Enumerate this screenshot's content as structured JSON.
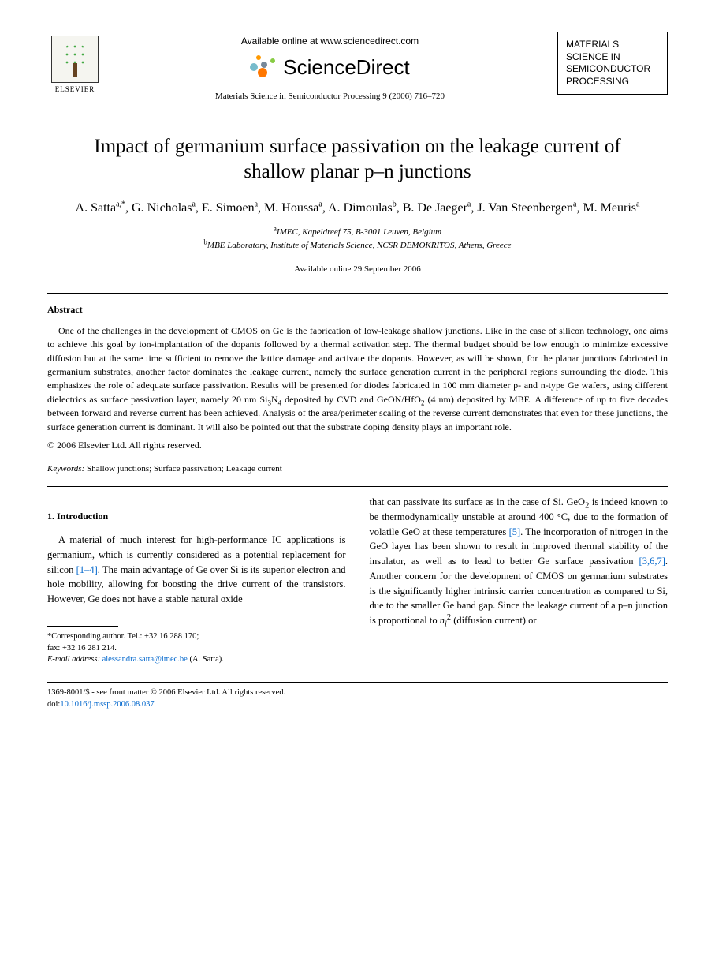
{
  "header": {
    "elsevier_label": "ELSEVIER",
    "available_online": "Available online at www.sciencedirect.com",
    "sciencedirect": "ScienceDirect",
    "journal_ref": "Materials Science in Semiconductor Processing 9 (2006) 716–720",
    "journal_box_line1": "MATERIALS",
    "journal_box_line2": "SCIENCE IN",
    "journal_box_line3": "SEMICONDUCTOR",
    "journal_box_line4": "PROCESSING"
  },
  "title": "Impact of germanium surface passivation on the leakage current of shallow planar p–n junctions",
  "authors_html": "A. Satta<sup>a,*</sup>, G. Nicholas<sup>a</sup>, E. Simoen<sup>a</sup>, M. Houssa<sup>a</sup>, A. Dimoulas<sup>b</sup>, B. De Jaeger<sup>a</sup>, J. Van Steenbergen<sup>a</sup>, M. Meuris<sup>a</sup>",
  "affil_a": "IMEC, Kapeldreef 75, B-3001 Leuven, Belgium",
  "affil_b": "MBE Laboratory, Institute of Materials Science, NCSR DEMOKRITOS, Athens, Greece",
  "received": "Available online 29 September 2006",
  "abstract_label": "Abstract",
  "abstract_html": "One of the challenges in the development of CMOS on Ge is the fabrication of low-leakage shallow junctions. Like in the case of silicon technology, one aims to achieve this goal by ion-implantation of the dopants followed by a thermal activation step. The thermal budget should be low enough to minimize excessive diffusion but at the same time sufficient to remove the lattice damage and activate the dopants. However, as will be shown, for the planar junctions fabricated in germanium substrates, another factor dominates the leakage current, namely the surface generation current in the peripheral regions surrounding the diode. This emphasizes the role of adequate surface passivation. Results will be presented for diodes fabricated in 100 mm diameter p- and n-type Ge wafers, using different dielectrics as surface passivation layer, namely 20 nm Si<sub>3</sub>N<sub>4</sub> deposited by CVD and GeON/HfO<sub>2</sub> (4 nm) deposited by MBE. A difference of up to five decades between forward and reverse current has been achieved. Analysis of the area/perimeter scaling of the reverse current demonstrates that even for these junctions, the surface generation current is dominant. It will also be pointed out that the substrate doping density plays an important role.",
  "copyright": "© 2006 Elsevier Ltd. All rights reserved.",
  "keywords_label": "Keywords:",
  "keywords": " Shallow junctions; Surface passivation; Leakage current",
  "section1": "1. Introduction",
  "col1_html": "A material of much interest for high-performance IC applications is germanium, which is currently considered as a potential replacement for silicon <a class=\"ref-link\" data-name=\"ref-link\" data-interactable=\"true\">[1–4]</a>. The main advantage of Ge over Si is its superior electron and hole mobility, allowing for boosting the drive current of the transistors. However, Ge does not have a stable natural oxide",
  "col2_html": "that can passivate its surface as in the case of Si. GeO<sub>2</sub> is indeed known to be thermodynamically unstable at around 400 °C, due to the formation of volatile GeO at these temperatures <a class=\"ref-link\" data-name=\"ref-link\" data-interactable=\"true\">[5]</a>. The incorporation of nitrogen in the GeO layer has been shown to result in improved thermal stability of the insulator, as well as to lead to better Ge surface passivation <a class=\"ref-link\" data-name=\"ref-link\" data-interactable=\"true\">[3,6,7]</a>. Another concern for the development of CMOS on germanium substrates is the significantly higher intrinsic carrier concentration as compared to Si, due to the smaller Ge band gap. Since the leakage current of a p–n junction is proportional to <i>n<sub>i</sub></i><sup>2</sup> (diffusion current) or",
  "footnote": {
    "corr": "*Corresponding author. Tel.: +32 16 288 170;",
    "fax": "fax: +32 16 281 214.",
    "email_label": "E-mail address:",
    "email": "alessandra.satta@imec.be",
    "email_tail": " (A. Satta)."
  },
  "footer": {
    "line1": "1369-8001/$ - see front matter © 2006 Elsevier Ltd. All rights reserved.",
    "doi_label": "doi:",
    "doi": "10.1016/j.mssp.2006.08.037"
  }
}
